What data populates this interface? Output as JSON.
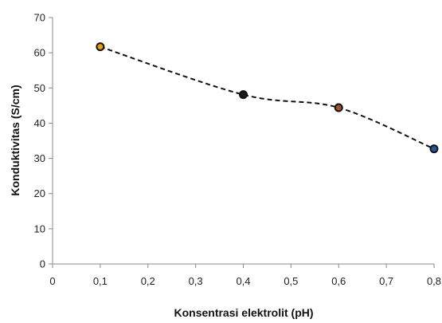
{
  "chart_data": {
    "type": "line",
    "title": "",
    "xlabel": "Konsentrasi elektrolit (pH)",
    "ylabel": "Konduktivitas  (S/cm)",
    "xlim": [
      0,
      0.8
    ],
    "ylim": [
      0,
      70
    ],
    "x_ticks": [
      "0",
      "0,1",
      "0,2",
      "0,3",
      "0,4",
      "0,5",
      "0,6",
      "0,7",
      "0,8"
    ],
    "y_ticks": [
      "0",
      "10",
      "20",
      "30",
      "40",
      "50",
      "60",
      "70"
    ],
    "grid": false,
    "legend": "none",
    "line_style": "dashed-smooth",
    "series": [
      {
        "x": [
          0.1,
          0.4,
          0.6,
          0.8
        ],
        "y": [
          61.7,
          48.1,
          44.4,
          32.7
        ],
        "marker_fills": [
          "#e0a000",
          "#1a1a1a",
          "#a0522d",
          "#1f5a99"
        ]
      }
    ],
    "colors": {
      "line": "#111111",
      "marker_edge": "#111111",
      "axis": "#888888"
    }
  }
}
